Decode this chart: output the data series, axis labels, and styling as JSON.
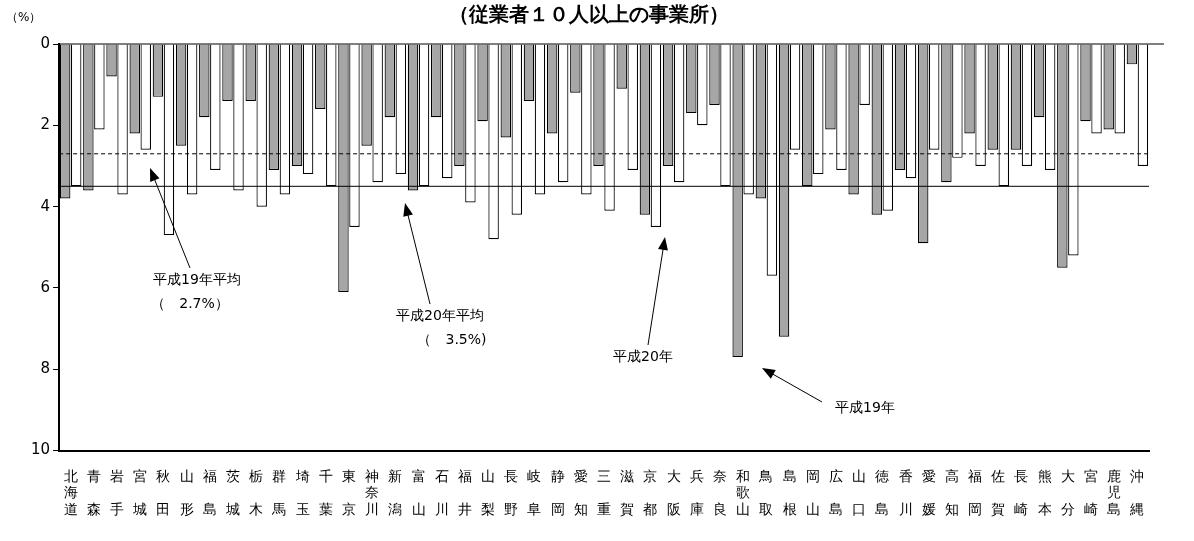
{
  "chart_data": {
    "type": "bar",
    "title": "（従業者１０人以上の事業所）",
    "ylabel": "（%）",
    "categories": [
      "北海道",
      "青森",
      "岩手",
      "宮城",
      "秋田",
      "山形",
      "福島",
      "茨城",
      "栃木",
      "群馬",
      "埼玉",
      "千葉",
      "東京",
      "神奈川",
      "新潟",
      "富山",
      "石川",
      "福井",
      "山梨",
      "長野",
      "岐阜",
      "静岡",
      "愛知",
      "三重",
      "滋賀",
      "京都",
      "大阪",
      "兵庫",
      "奈良",
      "和歌山",
      "鳥取",
      "島根",
      "岡山",
      "広島",
      "山口",
      "徳島",
      "香川",
      "愛媛",
      "高知",
      "福岡",
      "佐賀",
      "長崎",
      "熊本",
      "大分",
      "宮崎",
      "鹿児島",
      "沖縄"
    ],
    "series": [
      {
        "color": "#a6a6a6",
        "values": [
          3.8,
          3.6,
          0.8,
          2.2,
          1.3,
          2.5,
          1.8,
          1.4,
          1.4,
          3.1,
          3.0,
          1.6,
          6.1,
          2.5,
          1.8,
          3.6,
          1.8,
          3.0,
          1.9,
          2.3,
          1.4,
          2.2,
          1.2,
          3.0,
          1.1,
          4.2,
          3.0,
          1.7,
          1.5,
          7.7,
          3.8,
          7.2,
          3.5,
          2.1,
          3.7,
          4.2,
          3.1,
          4.9,
          3.4,
          2.2,
          2.6,
          2.6,
          1.8,
          5.5,
          1.9,
          2.1,
          0.5
        ]
      },
      {
        "color": "#ffffff",
        "values": [
          3.5,
          2.1,
          3.7,
          2.6,
          4.7,
          3.7,
          3.1,
          3.6,
          4.0,
          3.7,
          3.2,
          3.5,
          4.5,
          3.4,
          3.2,
          3.5,
          3.3,
          3.9,
          4.8,
          4.2,
          3.7,
          3.4,
          3.7,
          4.1,
          3.1,
          4.5,
          3.4,
          2.0,
          3.5,
          3.7,
          5.7,
          2.6,
          3.2,
          3.1,
          1.5,
          4.1,
          3.3,
          2.6,
          2.8,
          3.0,
          3.5,
          3.0,
          3.1,
          5.2,
          2.2,
          2.2,
          3.0
        ]
      }
    ],
    "ylim": [
      10,
      0
    ],
    "yticks": [
      0,
      2,
      4,
      6,
      8,
      10
    ],
    "grid": false,
    "legend": false,
    "ref_lines": [
      {
        "axis": "y",
        "value": 2.7,
        "line_style": "dashed"
      },
      {
        "axis": "y",
        "value": 3.5,
        "line_style": "solid"
      }
    ],
    "annotations": [
      "平成19年平均",
      "（　2.7%）",
      "平成20年平均",
      "（　3.5%)",
      "平成20年",
      "平成19年"
    ]
  }
}
